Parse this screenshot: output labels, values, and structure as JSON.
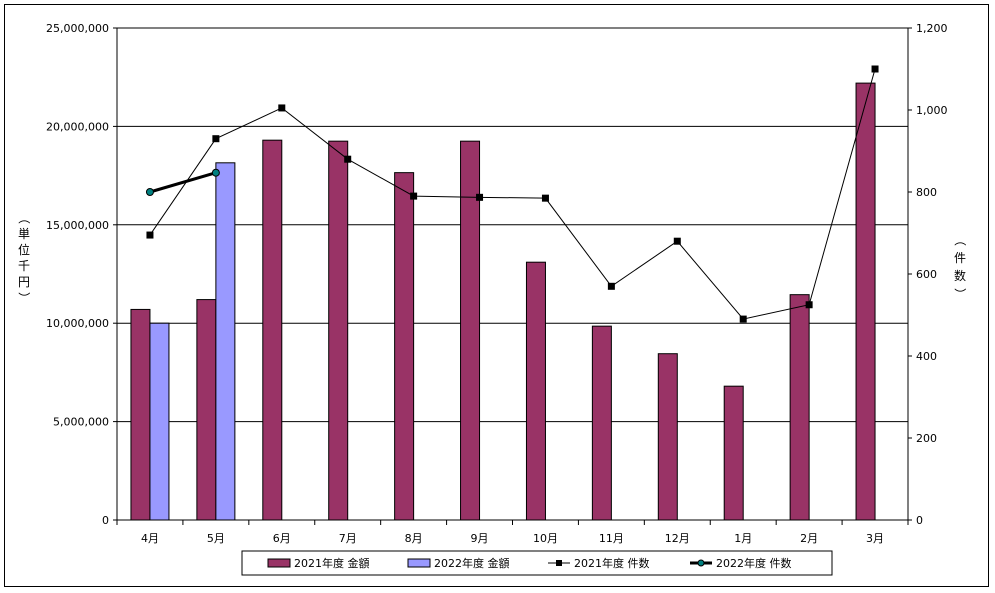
{
  "chart_data": {
    "type": "bar",
    "categories": [
      "4月",
      "5月",
      "6月",
      "7月",
      "8月",
      "9月",
      "10月",
      "11月",
      "12月",
      "1月",
      "2月",
      "3月"
    ],
    "y_left": {
      "label_chars": [
        "（",
        "単",
        "位",
        "千",
        "円",
        "）"
      ],
      "ylim": [
        0,
        25000000
      ],
      "ticks": [
        "0",
        "5,000,000",
        "10,000,000",
        "15,000,000",
        "20,000,000",
        "25,000,000"
      ],
      "tick_values": [
        0,
        5000000,
        10000000,
        15000000,
        20000000,
        25000000
      ]
    },
    "y_right": {
      "label_chars": [
        "（",
        "件",
        "数",
        "）"
      ],
      "ylim": [
        0,
        1200
      ],
      "ticks": [
        "0",
        "200",
        "400",
        "600",
        "800",
        "1,000",
        "1,200"
      ],
      "tick_values": [
        0,
        200,
        400,
        600,
        800,
        1000,
        1200
      ]
    },
    "grid": true,
    "series": [
      {
        "name": "2021年度 金額",
        "kind": "bar",
        "axis": "left",
        "color": "#993366",
        "values": [
          10700000,
          11200000,
          19300000,
          19250000,
          17650000,
          19250000,
          13100000,
          9850000,
          8450000,
          6800000,
          11450000,
          22200000
        ]
      },
      {
        "name": "2022年度 金額",
        "kind": "bar",
        "axis": "left",
        "color": "#9999ff",
        "values": [
          10000000,
          18150000,
          null,
          null,
          null,
          null,
          null,
          null,
          null,
          null,
          null,
          null
        ]
      },
      {
        "name": "2021年度 件数",
        "kind": "line",
        "axis": "right",
        "color": "#000000",
        "marker": "square",
        "values": [
          695,
          930,
          1005,
          880,
          790,
          787,
          785,
          570,
          680,
          490,
          525,
          1100
        ]
      },
      {
        "name": "2022年度 件数",
        "kind": "line",
        "axis": "right",
        "color": "#000000",
        "marker": "circle",
        "marker_color": "#008080",
        "values": [
          800,
          847,
          null,
          null,
          null,
          null,
          null,
          null,
          null,
          null,
          null,
          null
        ]
      }
    ],
    "legend_position": "bottom"
  }
}
